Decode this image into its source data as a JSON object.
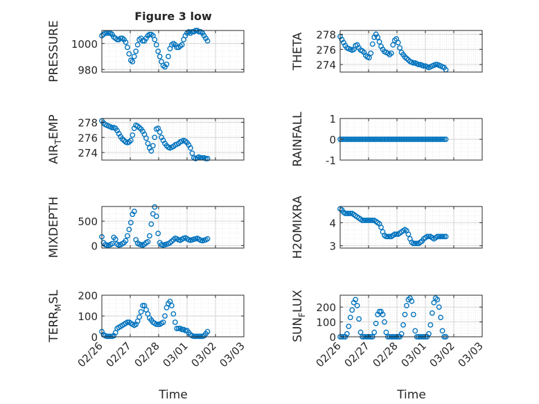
{
  "title": "Figure 3 low",
  "x_ticks": [
    "02/26",
    "02/27",
    "02/28",
    "03/01",
    "03/02",
    "03/03"
  ],
  "xlabel": "Time",
  "marker_color": "#0072BD",
  "chart_data": [
    {
      "type": "scatter",
      "ylabel": "PRESSURE",
      "ylim": [
        978,
        1010
      ],
      "yticks": [
        980,
        1000
      ],
      "x": [
        0.0,
        0.06,
        0.12,
        0.18,
        0.24,
        0.3,
        0.36,
        0.42,
        0.48,
        0.54,
        0.6,
        0.66,
        0.72,
        0.78,
        0.84,
        0.9,
        0.96,
        1.02,
        1.08,
        1.14,
        1.2,
        1.26,
        1.32,
        1.38,
        1.44,
        1.5,
        1.56,
        1.62,
        1.68,
        1.74,
        1.8,
        1.86,
        1.92,
        1.98,
        2.04,
        2.1,
        2.16,
        2.22,
        2.28,
        2.34,
        2.4,
        2.46,
        2.52,
        2.58,
        2.64,
        2.7,
        2.76,
        2.82,
        2.88,
        2.94,
        3.0,
        3.06,
        3.12,
        3.18,
        3.24,
        3.3,
        3.36,
        3.42,
        3.48,
        3.54,
        3.6,
        3.66,
        3.72
      ],
      "y": [
        1006,
        1007,
        1008,
        1008,
        1008,
        1008,
        1007,
        1005,
        1004,
        1003,
        1003,
        1004,
        1004,
        1003,
        1001,
        997,
        992,
        987,
        986,
        990,
        994,
        999,
        1003,
        1004,
        1002,
        1002,
        1004,
        1006,
        1007,
        1007,
        1006,
        1003,
        999,
        994,
        990,
        986,
        983,
        982,
        984,
        990,
        996,
        999,
        1000,
        999,
        997,
        997,
        998,
        999,
        1003,
        1006,
        1008,
        1009,
        1008,
        1009,
        1009,
        1010,
        1010,
        1009,
        1009,
        1008,
        1006,
        1004,
        1002
      ],
      "series": [
        {
          "name": "PRESSURE"
        }
      ]
    },
    {
      "type": "scatter",
      "ylabel": "THETA",
      "ylim": [
        273,
        278.5
      ],
      "yticks": [
        274,
        276,
        278
      ],
      "x": [
        0.0,
        0.06,
        0.12,
        0.18,
        0.24,
        0.3,
        0.36,
        0.42,
        0.48,
        0.54,
        0.6,
        0.66,
        0.72,
        0.78,
        0.84,
        0.9,
        0.96,
        1.02,
        1.08,
        1.14,
        1.2,
        1.26,
        1.32,
        1.38,
        1.44,
        1.5,
        1.56,
        1.62,
        1.68,
        1.74,
        1.8,
        1.86,
        1.92,
        1.98,
        2.04,
        2.1,
        2.16,
        2.22,
        2.28,
        2.34,
        2.4,
        2.46,
        2.52,
        2.58,
        2.64,
        2.7,
        2.76,
        2.82,
        2.88,
        2.94,
        3.0,
        3.06,
        3.12,
        3.18,
        3.24,
        3.3,
        3.36,
        3.42,
        3.48,
        3.54,
        3.6,
        3.66,
        3.72
      ],
      "y": [
        277.7,
        277.3,
        276.9,
        276.5,
        276.2,
        276.1,
        276.0,
        275.9,
        276.0,
        276.5,
        276.6,
        276.2,
        275.9,
        275.8,
        275.6,
        275.2,
        275.0,
        274.9,
        275.5,
        276.7,
        277.6,
        278.0,
        277.6,
        277.0,
        276.4,
        276.0,
        275.7,
        275.6,
        275.5,
        275.3,
        275.5,
        276.6,
        277.2,
        277.4,
        276.9,
        276.2,
        275.6,
        275.3,
        275.0,
        274.8,
        274.6,
        274.4,
        274.3,
        274.2,
        274.2,
        274.1,
        274.0,
        274.0,
        273.9,
        273.8,
        273.8,
        273.7,
        273.6,
        273.7,
        273.8,
        273.9,
        274.0,
        274.0,
        273.9,
        273.8,
        273.7,
        273.6,
        273.3
      ],
      "series": [
        {
          "name": "THETA"
        }
      ]
    },
    {
      "type": "scatter",
      "ylabel_main": "AIR",
      "ylabel_sub": "T",
      "ylabel_rest": "EMP",
      "ylim": [
        273,
        278.5
      ],
      "yticks": [
        274,
        276,
        278
      ],
      "x": [
        0.0,
        0.06,
        0.12,
        0.18,
        0.24,
        0.3,
        0.36,
        0.42,
        0.48,
        0.54,
        0.6,
        0.66,
        0.72,
        0.78,
        0.84,
        0.9,
        0.96,
        1.02,
        1.08,
        1.14,
        1.2,
        1.26,
        1.32,
        1.38,
        1.44,
        1.5,
        1.56,
        1.62,
        1.68,
        1.74,
        1.8,
        1.86,
        1.92,
        1.98,
        2.04,
        2.1,
        2.16,
        2.22,
        2.28,
        2.34,
        2.4,
        2.46,
        2.52,
        2.58,
        2.64,
        2.7,
        2.76,
        2.82,
        2.88,
        2.94,
        3.0,
        3.06,
        3.12,
        3.18,
        3.24,
        3.3,
        3.36,
        3.42,
        3.48,
        3.54,
        3.6,
        3.66,
        3.72
      ],
      "y": [
        278.2,
        277.9,
        277.7,
        277.6,
        277.5,
        277.4,
        277.3,
        277.3,
        277.2,
        276.9,
        276.5,
        276.1,
        275.8,
        275.6,
        275.4,
        275.3,
        275.4,
        275.6,
        276.3,
        277.2,
        277.6,
        277.5,
        277.3,
        277.1,
        276.8,
        276.4,
        275.9,
        275.2,
        274.6,
        274.2,
        274.9,
        276.0,
        277.1,
        277.2,
        276.7,
        276.0,
        275.6,
        275.2,
        274.9,
        274.7,
        274.6,
        274.7,
        274.8,
        275.0,
        275.1,
        275.2,
        275.4,
        275.5,
        275.6,
        275.5,
        275.3,
        275.0,
        274.6,
        273.9,
        273.3,
        273.2,
        273.3,
        273.4,
        273.3,
        273.3,
        273.3,
        273.2,
        273.2
      ],
      "series": [
        {
          "name": "AIR_TEMP"
        }
      ]
    },
    {
      "type": "scatter",
      "ylabel": "RAINFALL",
      "ylim": [
        -1,
        1
      ],
      "yticks": [
        -1,
        0,
        1
      ],
      "x": [
        0.0,
        0.06,
        0.12,
        0.18,
        0.24,
        0.3,
        0.36,
        0.42,
        0.48,
        0.54,
        0.6,
        0.66,
        0.72,
        0.78,
        0.84,
        0.9,
        0.96,
        1.02,
        1.08,
        1.14,
        1.2,
        1.26,
        1.32,
        1.38,
        1.44,
        1.5,
        1.56,
        1.62,
        1.68,
        1.74,
        1.8,
        1.86,
        1.92,
        1.98,
        2.04,
        2.1,
        2.16,
        2.22,
        2.28,
        2.34,
        2.4,
        2.46,
        2.52,
        2.58,
        2.64,
        2.7,
        2.76,
        2.82,
        2.88,
        2.94,
        3.0,
        3.06,
        3.12,
        3.18,
        3.24,
        3.3,
        3.36,
        3.42,
        3.48,
        3.54,
        3.6,
        3.66,
        3.72
      ],
      "y": [
        0,
        0,
        0,
        0,
        0,
        0,
        0,
        0,
        0,
        0,
        0,
        0,
        0,
        0,
        0,
        0,
        0,
        0,
        0,
        0,
        0,
        0,
        0,
        0,
        0,
        0,
        0,
        0,
        0,
        0,
        0,
        0,
        0,
        0,
        0,
        0,
        0,
        0,
        0,
        0,
        0,
        0,
        0,
        0,
        0,
        0,
        0,
        0,
        0,
        0,
        0,
        0,
        0,
        0,
        0,
        0,
        0,
        0,
        0,
        0,
        0,
        0,
        0
      ],
      "series": [
        {
          "name": "RAINFALL"
        }
      ]
    },
    {
      "type": "scatter",
      "ylabel": "MIXDEPTH",
      "ylim": [
        -50,
        800
      ],
      "yticks": [
        0,
        500
      ],
      "x": [
        0.0,
        0.06,
        0.12,
        0.18,
        0.24,
        0.3,
        0.36,
        0.42,
        0.48,
        0.54,
        0.6,
        0.66,
        0.72,
        0.78,
        0.84,
        0.9,
        0.96,
        1.02,
        1.08,
        1.14,
        1.2,
        1.26,
        1.32,
        1.38,
        1.44,
        1.5,
        1.56,
        1.62,
        1.68,
        1.74,
        1.8,
        1.86,
        1.92,
        1.98,
        2.04,
        2.1,
        2.16,
        2.22,
        2.28,
        2.34,
        2.4,
        2.46,
        2.52,
        2.58,
        2.64,
        2.7,
        2.76,
        2.82,
        2.88,
        2.94,
        3.0,
        3.06,
        3.12,
        3.18,
        3.24,
        3.3,
        3.36,
        3.42,
        3.48,
        3.54,
        3.6,
        3.66,
        3.72
      ],
      "y": [
        180,
        60,
        20,
        10,
        10,
        20,
        40,
        170,
        130,
        30,
        10,
        20,
        40,
        60,
        100,
        200,
        330,
        470,
        640,
        700,
        120,
        50,
        30,
        20,
        10,
        30,
        60,
        80,
        200,
        440,
        650,
        790,
        600,
        250,
        60,
        20,
        10,
        20,
        30,
        40,
        60,
        90,
        120,
        150,
        140,
        120,
        110,
        130,
        150,
        160,
        140,
        120,
        110,
        120,
        130,
        140,
        150,
        130,
        110,
        100,
        110,
        120,
        140
      ],
      "series": [
        {
          "name": "MIXDEPTH"
        }
      ]
    },
    {
      "type": "scatter",
      "ylabel": "H2OMIXRA",
      "ylim": [
        2.9,
        4.7
      ],
      "yticks": [
        3,
        4
      ],
      "x": [
        0.0,
        0.06,
        0.12,
        0.18,
        0.24,
        0.3,
        0.36,
        0.42,
        0.48,
        0.54,
        0.6,
        0.66,
        0.72,
        0.78,
        0.84,
        0.9,
        0.96,
        1.02,
        1.08,
        1.14,
        1.2,
        1.26,
        1.32,
        1.38,
        1.44,
        1.5,
        1.56,
        1.62,
        1.68,
        1.74,
        1.8,
        1.86,
        1.92,
        1.98,
        2.04,
        2.1,
        2.16,
        2.22,
        2.28,
        2.34,
        2.4,
        2.46,
        2.52,
        2.58,
        2.64,
        2.7,
        2.76,
        2.82,
        2.88,
        2.94,
        3.0,
        3.06,
        3.12,
        3.18,
        3.24,
        3.3,
        3.36,
        3.42,
        3.48,
        3.54,
        3.6,
        3.66,
        3.72
      ],
      "y": [
        4.6,
        4.55,
        4.45,
        4.4,
        4.4,
        4.4,
        4.4,
        4.4,
        4.35,
        4.3,
        4.25,
        4.2,
        4.15,
        4.1,
        4.1,
        4.1,
        4.1,
        4.1,
        4.1,
        4.1,
        4.1,
        4.05,
        4.0,
        3.95,
        3.8,
        3.6,
        3.45,
        3.4,
        3.4,
        3.4,
        3.4,
        3.45,
        3.5,
        3.5,
        3.5,
        3.55,
        3.6,
        3.65,
        3.7,
        3.65,
        3.5,
        3.3,
        3.15,
        3.1,
        3.1,
        3.1,
        3.1,
        3.15,
        3.2,
        3.3,
        3.35,
        3.4,
        3.4,
        3.4,
        3.35,
        3.3,
        3.35,
        3.4,
        3.4,
        3.4,
        3.4,
        3.4,
        3.4
      ],
      "series": [
        {
          "name": "H2OMIXRA"
        }
      ]
    },
    {
      "type": "scatter",
      "ylabel_main": "TERR",
      "ylabel_sub": "M",
      "ylabel_rest": "SL",
      "ylim": [
        0,
        200
      ],
      "yticks": [
        0,
        100,
        200
      ],
      "x": [
        0.0,
        0.06,
        0.12,
        0.18,
        0.24,
        0.3,
        0.36,
        0.42,
        0.48,
        0.54,
        0.6,
        0.66,
        0.72,
        0.78,
        0.84,
        0.9,
        0.96,
        1.02,
        1.08,
        1.14,
        1.2,
        1.26,
        1.32,
        1.38,
        1.44,
        1.5,
        1.56,
        1.62,
        1.68,
        1.74,
        1.8,
        1.86,
        1.92,
        1.98,
        2.04,
        2.1,
        2.16,
        2.22,
        2.28,
        2.34,
        2.4,
        2.46,
        2.52,
        2.58,
        2.64,
        2.7,
        2.76,
        2.82,
        2.88,
        2.94,
        3.0,
        3.06,
        3.12,
        3.18,
        3.24,
        3.3,
        3.36,
        3.42,
        3.48,
        3.54,
        3.6,
        3.66,
        3.72
      ],
      "y": [
        25,
        10,
        5,
        2,
        2,
        2,
        2,
        5,
        20,
        40,
        45,
        50,
        55,
        60,
        65,
        70,
        70,
        65,
        60,
        55,
        60,
        75,
        95,
        120,
        150,
        150,
        130,
        110,
        90,
        80,
        70,
        65,
        60,
        60,
        60,
        65,
        70,
        100,
        140,
        160,
        170,
        150,
        110,
        70,
        40,
        40,
        40,
        35,
        35,
        30,
        30,
        20,
        10,
        5,
        2,
        2,
        2,
        2,
        2,
        2,
        5,
        15,
        25
      ],
      "series": [
        {
          "name": "TERR_MSL"
        }
      ]
    },
    {
      "type": "scatter",
      "ylabel_main": "SUN",
      "ylabel_sub": "F",
      "ylabel_rest": "LUX",
      "ylim": [
        0,
        280
      ],
      "yticks": [
        0,
        100,
        200
      ],
      "x": [
        0.0,
        0.06,
        0.12,
        0.18,
        0.24,
        0.3,
        0.36,
        0.42,
        0.48,
        0.54,
        0.6,
        0.66,
        0.72,
        0.78,
        0.84,
        0.9,
        0.96,
        1.02,
        1.08,
        1.14,
        1.2,
        1.26,
        1.32,
        1.38,
        1.44,
        1.5,
        1.56,
        1.62,
        1.68,
        1.74,
        1.8,
        1.86,
        1.92,
        1.98,
        2.04,
        2.1,
        2.16,
        2.22,
        2.28,
        2.34,
        2.4,
        2.46,
        2.52,
        2.58,
        2.64,
        2.7,
        2.76,
        2.82,
        2.88,
        2.94,
        3.0,
        3.06,
        3.12,
        3.18,
        3.24,
        3.3,
        3.36,
        3.42,
        3.48,
        3.54,
        3.6,
        3.66,
        3.72
      ],
      "y": [
        0,
        0,
        0,
        0,
        20,
        70,
        130,
        180,
        230,
        250,
        210,
        120,
        30,
        0,
        0,
        0,
        0,
        0,
        0,
        0,
        30,
        90,
        150,
        170,
        170,
        150,
        100,
        30,
        0,
        0,
        0,
        0,
        0,
        0,
        0,
        0,
        20,
        80,
        150,
        210,
        250,
        260,
        240,
        150,
        40,
        0,
        0,
        0,
        0,
        0,
        0,
        0,
        20,
        80,
        160,
        230,
        260,
        250,
        200,
        130,
        40,
        0,
        0
      ],
      "series": [
        {
          "name": "SUN_FLUX"
        }
      ]
    }
  ]
}
